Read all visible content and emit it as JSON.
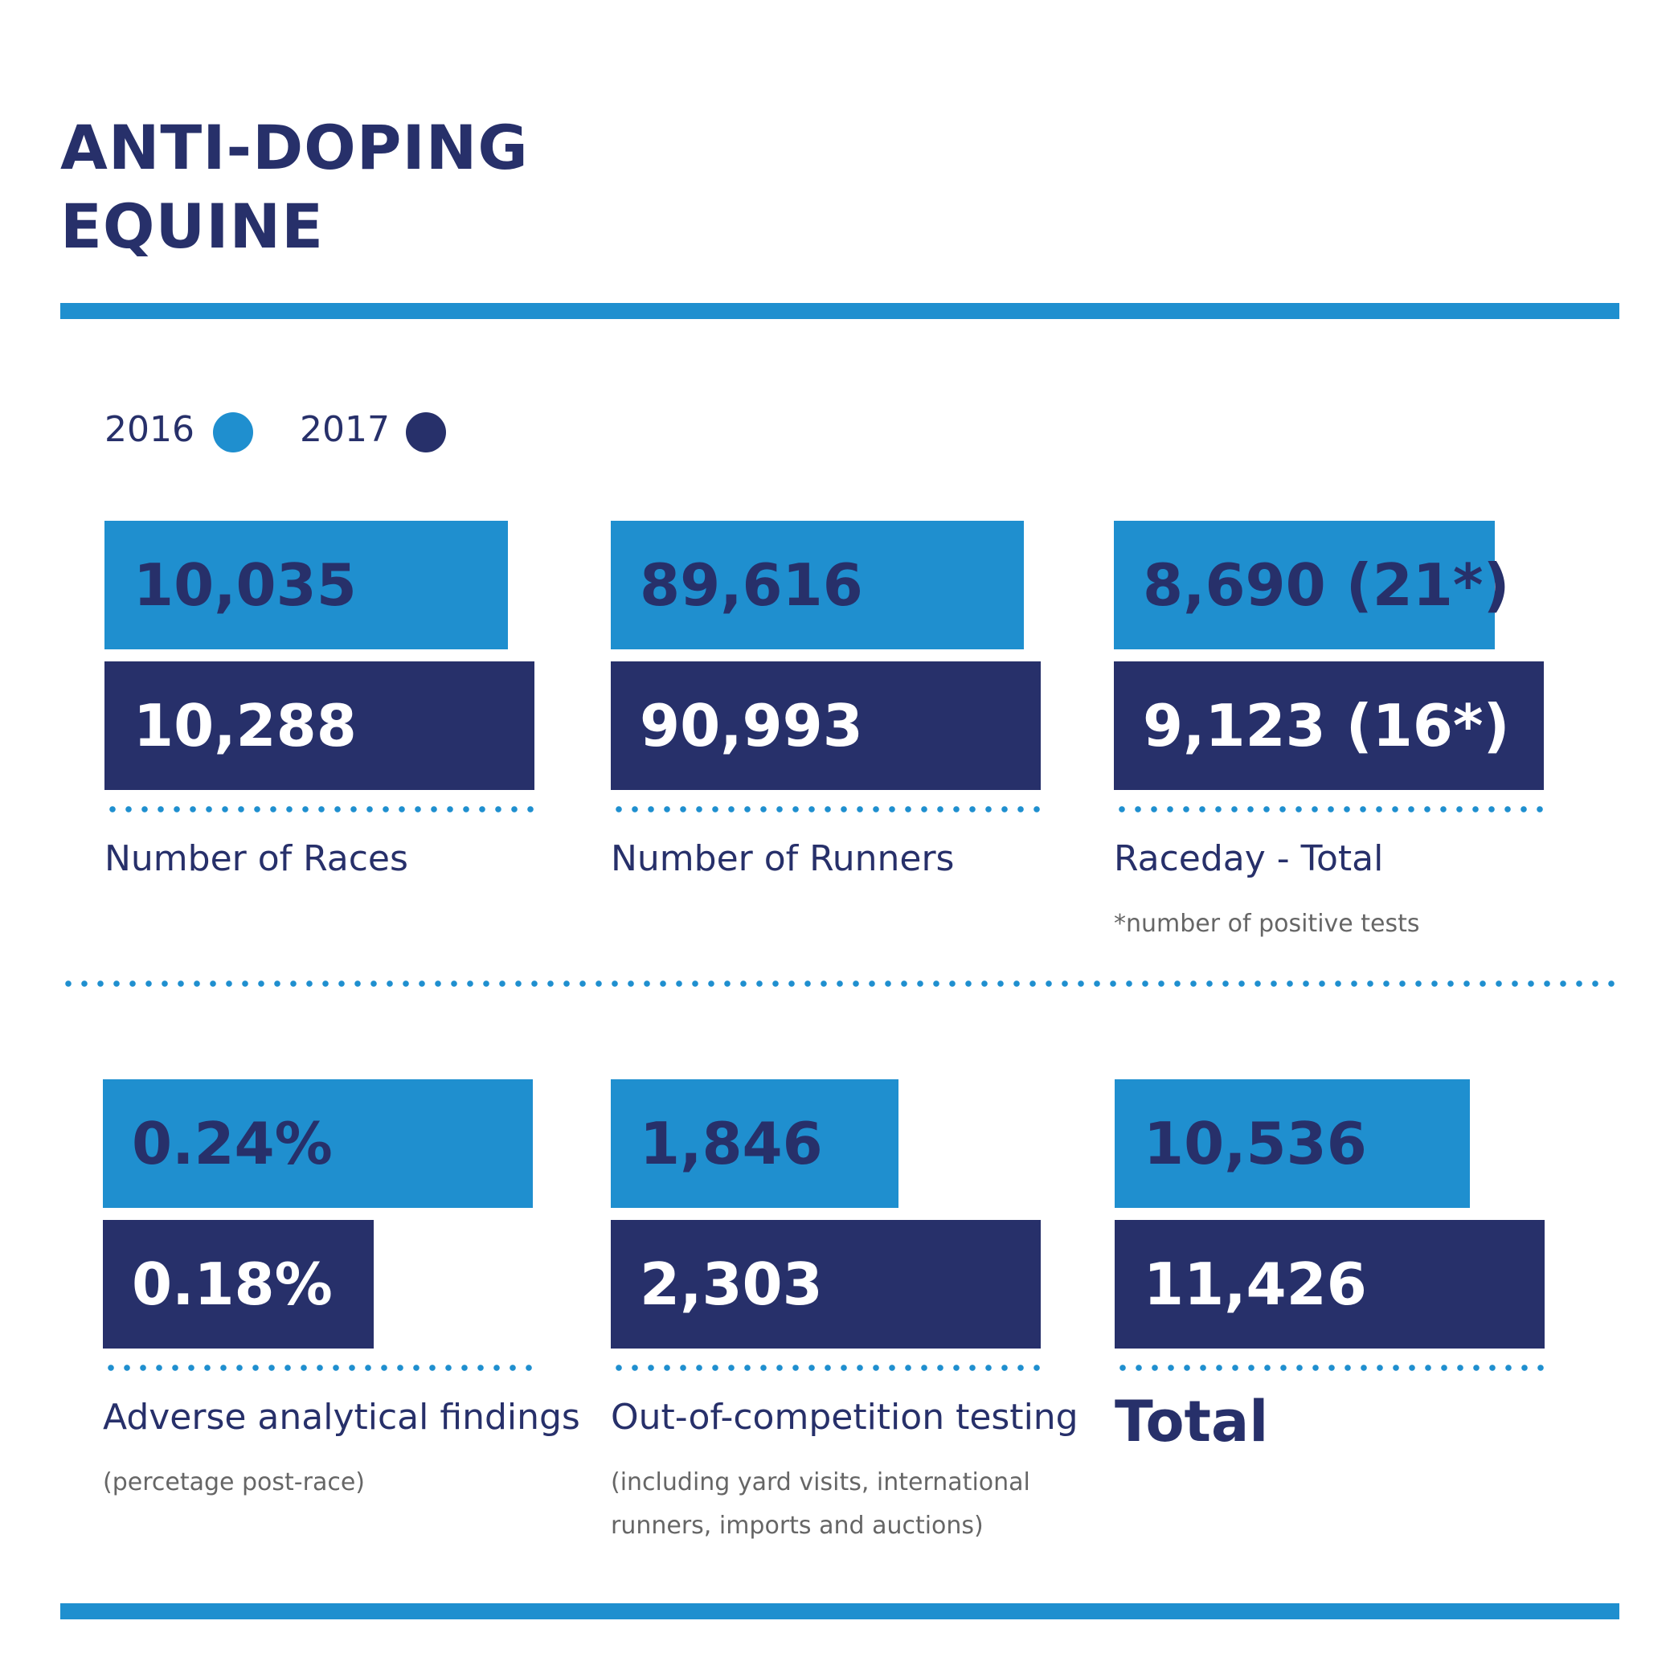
{
  "title": {
    "line1": "ANTI-DOPING",
    "line2": "EQUINE"
  },
  "legend": [
    {
      "label": "2016",
      "color": "#1f8fcf"
    },
    {
      "label": "2017",
      "color": "#27306a"
    }
  ],
  "colors": {
    "light_blue": "#1f8fcf",
    "navy": "#27306a"
  },
  "chart_data": {
    "type": "bar",
    "series_names": [
      "2016",
      "2017"
    ],
    "panels": [
      {
        "category": "Number of Races",
        "values": [
          10035,
          10288
        ],
        "labels": [
          "10,035",
          "10,288"
        ],
        "note": ""
      },
      {
        "category": "Number of Runners",
        "values": [
          89616,
          90993
        ],
        "labels": [
          "89,616",
          "90,993"
        ],
        "note": ""
      },
      {
        "category": "Raceday - Total",
        "values": [
          8690,
          9123
        ],
        "labels": [
          "8,690 (21*)",
          "9,123 (16*)"
        ],
        "note": "*number of positive tests"
      },
      {
        "category": "Adverse analytical findings",
        "values": [
          0.24,
          0.18
        ],
        "labels": [
          "0.24%",
          "0.18%"
        ],
        "note": "(percetage post-race)"
      },
      {
        "category": "Out-of-competition testing",
        "values": [
          1846,
          2303
        ],
        "labels": [
          "1,846",
          "2,303"
        ],
        "note": "(including yard visits, international runners, imports and auctions)"
      },
      {
        "category": "Total",
        "values": [
          10536,
          11426
        ],
        "labels": [
          "10,536",
          "11,426"
        ],
        "note": "",
        "emphasis": true
      }
    ]
  }
}
